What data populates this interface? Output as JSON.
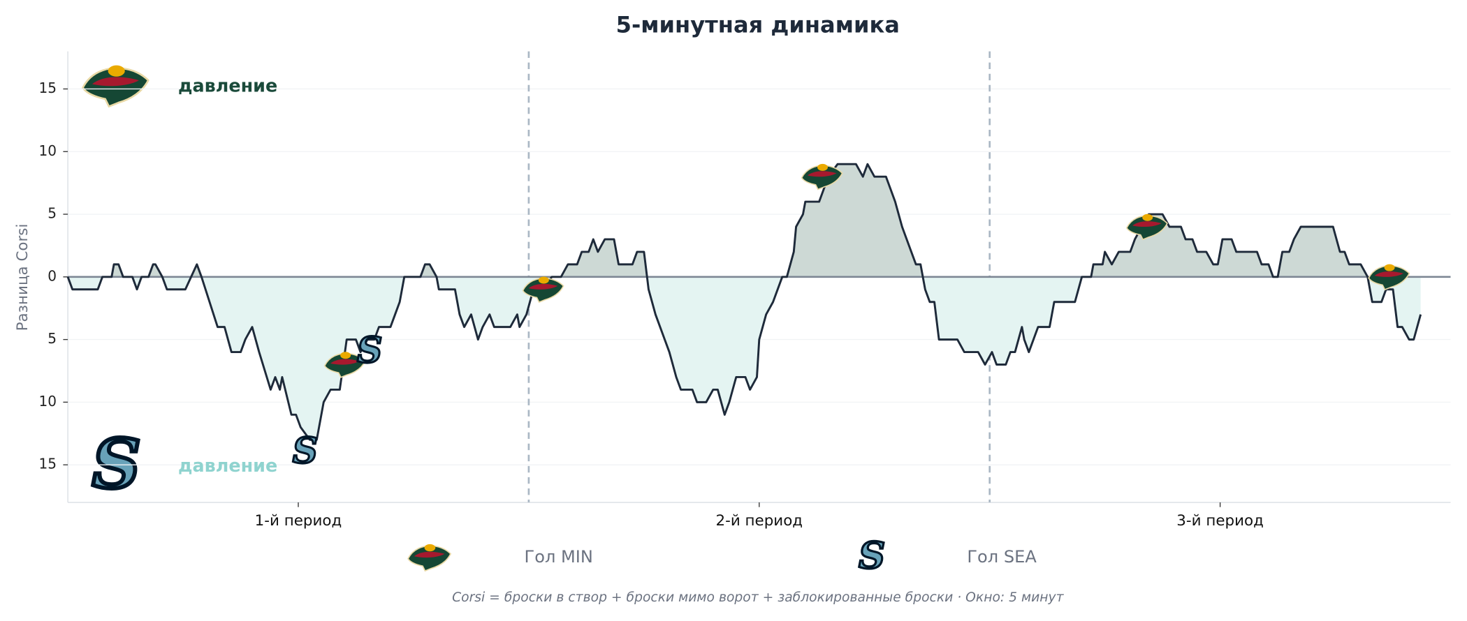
{
  "chart_data": {
    "type": "line",
    "title": "5-минутная динамика",
    "ylabel": "Разница Corsi",
    "footnote": "Corsi = броски в створ + броски мимо ворот + заблокированные броски · Окно: 5 минут",
    "xlim": [
      0,
      60
    ],
    "xticks": [
      {
        "value": 10,
        "label": "1-й период"
      },
      {
        "value": 30,
        "label": "2-й период"
      },
      {
        "value": 50,
        "label": "3-й период"
      }
    ],
    "period_lines": [
      20,
      40
    ],
    "ylim": [
      -18,
      18
    ],
    "yticks": [
      {
        "value": -15,
        "label": "15"
      },
      {
        "value": -10,
        "label": "10"
      },
      {
        "value": -5,
        "label": "5"
      },
      0,
      5,
      10,
      15
    ],
    "grid": true,
    "color": "#1e2a3a",
    "fill_positive": "#cdd9d5",
    "fill_negative": "#e4f4f2",
    "x": [
      0,
      0.2,
      1.3,
      1.5,
      1.9,
      2.0,
      2.2,
      2.4,
      2.8,
      3.0,
      3.2,
      3.5,
      3.7,
      3.8,
      4.1,
      4.3,
      5.1,
      5.6,
      5.8,
      6.5,
      6.8,
      7.1,
      7.5,
      7.7,
      8.0,
      8.3,
      8.8,
      9.0,
      9.2,
      9.3,
      9.7,
      9.9,
      10.1,
      10.5,
      10.8,
      11.1,
      11.4,
      11.8,
      12.1,
      12.5,
      12.7,
      13.0,
      13.3,
      13.5,
      14.0,
      14.2,
      14.4,
      14.6,
      15.3,
      15.5,
      15.7,
      16.0,
      16.1,
      16.8,
      17.0,
      17.2,
      17.5,
      17.8,
      18.0,
      18.3,
      18.5,
      19.2,
      19.5,
      19.6,
      19.9,
      20.2,
      20.6,
      21.0,
      21.4,
      21.7,
      22.1,
      22.3,
      22.6,
      22.8,
      23.0,
      23.3,
      23.7,
      23.9,
      24.5,
      24.7,
      25.0,
      25.2,
      25.5,
      25.9,
      26.1,
      26.4,
      26.6,
      27.1,
      27.3,
      27.7,
      28.0,
      28.2,
      28.5,
      28.7,
      29.0,
      29.4,
      29.6,
      29.9,
      30.0,
      30.3,
      30.6,
      31.0,
      31.2,
      31.5,
      31.6,
      31.9,
      32.0,
      32.6,
      32.8,
      33.0,
      33.4,
      34.2,
      34.5,
      34.7,
      35.0,
      35.5,
      35.7,
      35.9,
      36.2,
      36.4,
      36.8,
      37.0,
      37.2,
      37.4,
      37.6,
      37.8,
      38.6,
      38.9,
      39.5,
      39.8,
      40.1,
      40.3,
      40.7,
      40.9,
      41.1,
      41.4,
      41.5,
      41.7,
      41.9,
      42.1,
      42.6,
      42.8,
      43.7,
      44.0,
      44.4,
      44.5,
      44.9,
      45.0,
      45.3,
      45.6,
      46.1,
      46.3,
      46.6,
      46.9,
      47.5,
      47.8,
      48.3,
      48.5,
      48.8,
      49.0,
      49.4,
      49.7,
      49.9,
      50.1,
      50.5,
      50.7,
      51.6,
      51.8,
      52.1,
      52.3,
      52.5,
      52.7,
      53.0,
      53.2,
      53.5,
      54.9,
      55.2,
      55.4,
      55.6,
      56.1,
      56.4,
      56.6,
      57.0,
      57.2,
      57.5,
      57.7,
      57.9,
      58.2,
      58.4,
      58.7
    ],
    "values": [
      0,
      -1,
      -1,
      0,
      0,
      1,
      1,
      0,
      0,
      -1,
      0,
      0,
      1,
      1,
      0,
      -1,
      -1,
      1,
      0,
      -4,
      -4,
      -6,
      -6,
      -5,
      -4,
      -6,
      -9,
      -8,
      -9,
      -8,
      -11,
      -11,
      -12,
      -13,
      -13,
      -10,
      -9,
      -9,
      -5,
      -5,
      -6,
      -5,
      -5,
      -4,
      -4,
      -3,
      -2,
      0,
      0,
      1,
      1,
      0,
      -1,
      -1,
      -3,
      -4,
      -3,
      -5,
      -4,
      -3,
      -4,
      -4,
      -3,
      -4,
      -3,
      -1,
      -1,
      0,
      0,
      1,
      1,
      2,
      2,
      3,
      2,
      3,
      3,
      1,
      1,
      2,
      2,
      -1,
      -3,
      -5,
      -6,
      -8,
      -9,
      -9,
      -10,
      -10,
      -9,
      -9,
      -11,
      -10,
      -8,
      -8,
      -9,
      -8,
      -5,
      -3,
      -2,
      0,
      0,
      2,
      4,
      5,
      6,
      6,
      7,
      8,
      9,
      9,
      8,
      9,
      8,
      8,
      7,
      6,
      4,
      3,
      1,
      1,
      -1,
      -2,
      -2,
      -5,
      -5,
      -6,
      -6,
      -7,
      -6,
      -7,
      -7,
      -6,
      -6,
      -4,
      -5,
      -6,
      -5,
      -4,
      -4,
      -2,
      -2,
      0,
      0,
      1,
      1,
      2,
      1,
      2,
      2,
      3,
      4,
      5,
      5,
      4,
      4,
      3,
      3,
      2,
      2,
      1,
      1,
      3,
      3,
      2,
      2,
      1,
      1,
      0,
      0,
      2,
      2,
      3,
      4,
      4,
      2,
      2,
      1,
      1,
      0,
      -2,
      -2,
      -1,
      -1,
      -4,
      -4,
      -5,
      -5,
      -3
    ],
    "goal_markers": [
      {
        "name": "Гол MIN",
        "x": [
          12.0,
          20.6,
          32.7,
          46.8,
          57.3
        ],
        "y": [
          -7,
          -1,
          8,
          4,
          0
        ]
      },
      {
        "name": "Гол SEA",
        "x": [
          13.1,
          10.3
        ],
        "y": [
          -6,
          -14
        ]
      }
    ],
    "annotations": [
      {
        "text": "давление",
        "color": "#1a4a3a"
      },
      {
        "text": "давление",
        "color": "#8fd3cf"
      }
    ]
  }
}
